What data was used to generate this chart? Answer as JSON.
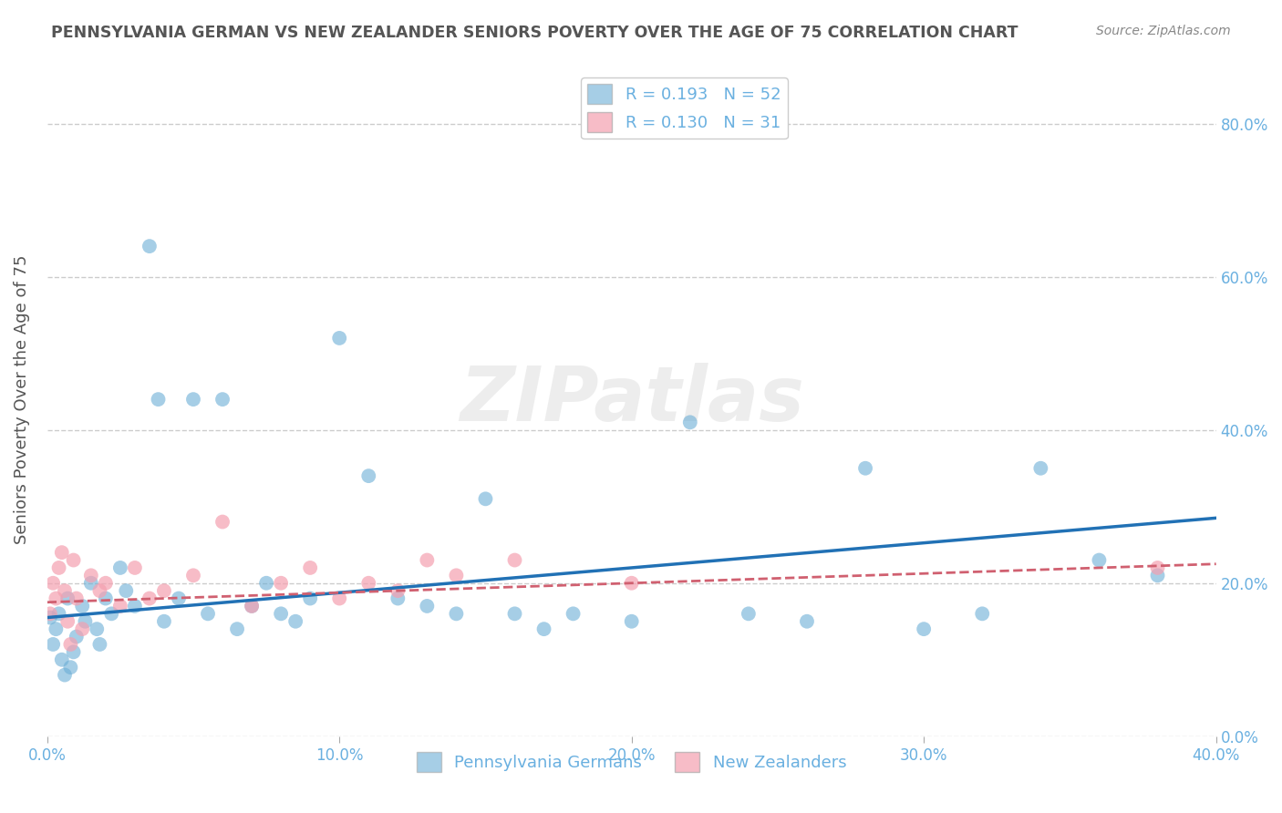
{
  "title": "PENNSYLVANIA GERMAN VS NEW ZEALANDER SENIORS POVERTY OVER THE AGE OF 75 CORRELATION CHART",
  "source": "Source: ZipAtlas.com",
  "ylabel": "Seniors Poverty Over the Age of 75",
  "xlim": [
    0.0,
    0.4
  ],
  "ylim": [
    0.0,
    0.88
  ],
  "grid_color": "#cccccc",
  "background_color": "#ffffff",
  "blue_color": "#6baed6",
  "blue_line_color": "#2171b5",
  "pink_color": "#f4a0b0",
  "pink_line_color": "#d06070",
  "title_color": "#555555",
  "axis_label_color": "#555555",
  "tick_color": "#6ab0e0",
  "legend_r1": "R = 0.193",
  "legend_n1": "N = 52",
  "legend_r2": "R = 0.130",
  "legend_n2": "N = 31",
  "watermark": "ZIPatlas",
  "pg_x": [
    0.001,
    0.002,
    0.003,
    0.004,
    0.005,
    0.006,
    0.007,
    0.008,
    0.009,
    0.01,
    0.012,
    0.013,
    0.015,
    0.017,
    0.018,
    0.02,
    0.022,
    0.025,
    0.027,
    0.03,
    0.035,
    0.038,
    0.04,
    0.045,
    0.05,
    0.055,
    0.06,
    0.065,
    0.07,
    0.075,
    0.08,
    0.085,
    0.09,
    0.1,
    0.11,
    0.12,
    0.13,
    0.14,
    0.15,
    0.16,
    0.17,
    0.18,
    0.2,
    0.22,
    0.24,
    0.26,
    0.28,
    0.3,
    0.32,
    0.34,
    0.36,
    0.38
  ],
  "pg_y": [
    0.155,
    0.12,
    0.14,
    0.16,
    0.1,
    0.08,
    0.18,
    0.09,
    0.11,
    0.13,
    0.17,
    0.15,
    0.2,
    0.14,
    0.12,
    0.18,
    0.16,
    0.22,
    0.19,
    0.17,
    0.64,
    0.44,
    0.15,
    0.18,
    0.44,
    0.16,
    0.44,
    0.14,
    0.17,
    0.2,
    0.16,
    0.15,
    0.18,
    0.52,
    0.34,
    0.18,
    0.17,
    0.16,
    0.31,
    0.16,
    0.14,
    0.16,
    0.15,
    0.41,
    0.16,
    0.15,
    0.35,
    0.14,
    0.16,
    0.35,
    0.23,
    0.21
  ],
  "nz_x": [
    0.001,
    0.002,
    0.003,
    0.004,
    0.005,
    0.006,
    0.007,
    0.008,
    0.009,
    0.01,
    0.012,
    0.015,
    0.018,
    0.02,
    0.025,
    0.03,
    0.035,
    0.04,
    0.05,
    0.06,
    0.07,
    0.08,
    0.09,
    0.1,
    0.11,
    0.12,
    0.13,
    0.14,
    0.16,
    0.2,
    0.38
  ],
  "nz_y": [
    0.16,
    0.2,
    0.18,
    0.22,
    0.24,
    0.19,
    0.15,
    0.12,
    0.23,
    0.18,
    0.14,
    0.21,
    0.19,
    0.2,
    0.17,
    0.22,
    0.18,
    0.19,
    0.21,
    0.28,
    0.17,
    0.2,
    0.22,
    0.18,
    0.2,
    0.19,
    0.23,
    0.21,
    0.23,
    0.2,
    0.22
  ],
  "pg_trend_x": [
    0.0,
    0.4
  ],
  "pg_trend_y": [
    0.155,
    0.285
  ],
  "nz_trend_x": [
    0.0,
    0.4
  ],
  "nz_trend_y": [
    0.175,
    0.225
  ]
}
